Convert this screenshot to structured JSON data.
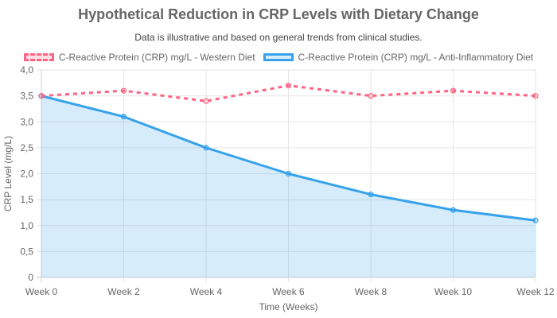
{
  "chart_data": {
    "type": "line",
    "title": "Hypothetical Reduction in CRP Levels with Dietary Change",
    "subtitle": "Data is illustrative and based on general trends from clinical studies.",
    "xlabel": "Time (Weeks)",
    "ylabel": "CRP Level (mg/L)",
    "categories": [
      "Week 0",
      "Week 2",
      "Week 4",
      "Week 6",
      "Week 8",
      "Week 10",
      "Week 12"
    ],
    "ylim": [
      0,
      4
    ],
    "yticks": [
      "0",
      "0,5",
      "1,0",
      "1,5",
      "2,0",
      "2,5",
      "3,0",
      "3,5",
      "4,0"
    ],
    "grid": true,
    "legend_position": "top",
    "series": [
      {
        "name": "C-Reactive Protein (CRP) mg/L - Western Diet",
        "values": [
          3.5,
          3.6,
          3.4,
          3.7,
          3.5,
          3.6,
          3.5
        ],
        "color": "#ff6384",
        "fill": false,
        "dashed": true
      },
      {
        "name": "C-Reactive Protein (CRP) mg/L - Anti-Inflammatory Diet",
        "values": [
          3.5,
          3.1,
          2.5,
          2.0,
          1.6,
          1.3,
          1.1
        ],
        "color": "#36a2eb",
        "fill": true,
        "dashed": false
      }
    ]
  }
}
